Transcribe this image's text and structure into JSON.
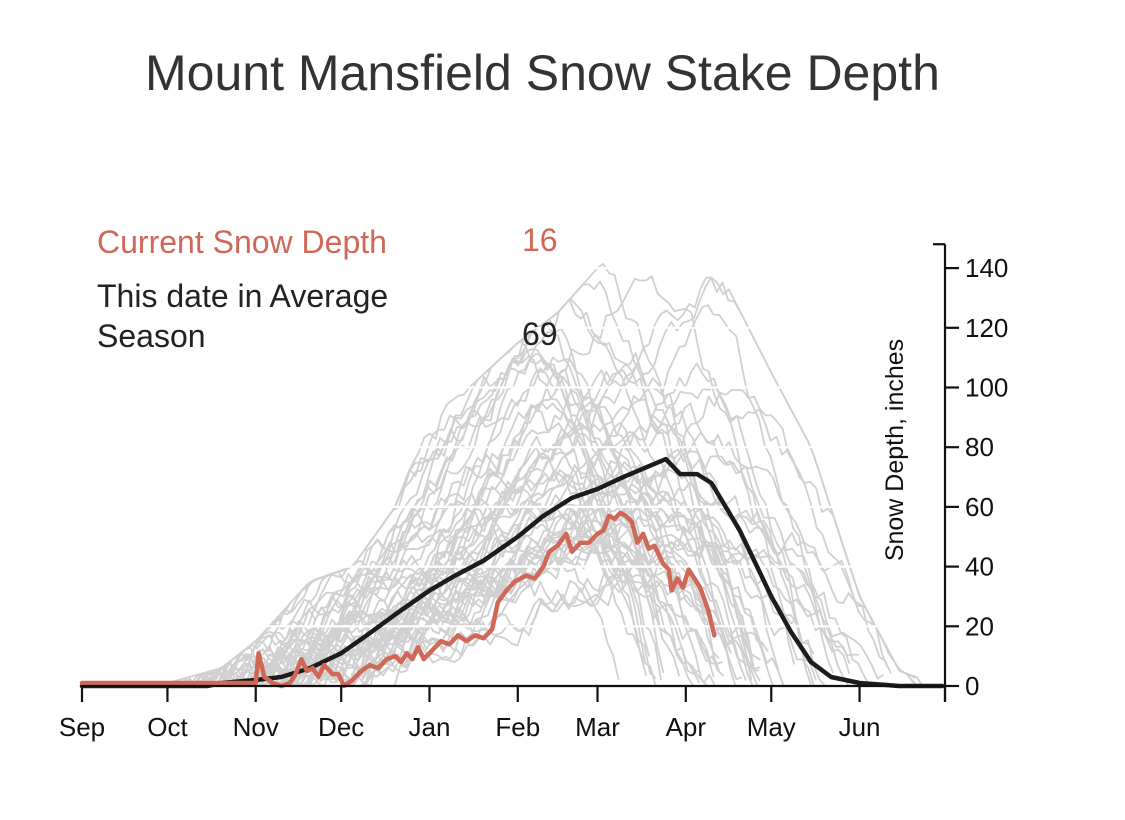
{
  "colors": {
    "current": "#d06858",
    "average": "#1c1c1c",
    "history": "#d0d0d0",
    "grid": "#ffffff",
    "axis": "#111111",
    "title": "#333333"
  },
  "chart_data": {
    "type": "line",
    "title": "Mount Mansfield Snow Stake Depth",
    "xlabel": "",
    "ylabel": "Snow Depth, inches",
    "x_axis": "day of season starting Sep 1",
    "x_ticks": [
      "Sep",
      "Oct",
      "Nov",
      "Dec",
      "Jan",
      "Feb",
      "Mar",
      "Apr",
      "May",
      "Jun"
    ],
    "y_ticks": [
      0,
      20,
      40,
      60,
      80,
      100,
      120,
      140
    ],
    "ylim": [
      0,
      148
    ],
    "y_axis_side": "right",
    "grid": "horizontal white gridlines",
    "legend": {
      "current_label": "Current Snow Depth",
      "current_value": "16",
      "average_label": "This date in Average Season",
      "average_value": "69"
    },
    "series": [
      {
        "name": "Current Snow Depth",
        "color": "#d06858",
        "points": [
          [
            "Sep 1",
            1
          ],
          [
            "Sep 15",
            1
          ],
          [
            "Oct 1",
            1
          ],
          [
            "Oct 15",
            1
          ],
          [
            "Oct 28",
            1
          ],
          [
            "Nov 1",
            1
          ],
          [
            "Nov 2",
            11
          ],
          [
            "Nov 4",
            3
          ],
          [
            "Nov 7",
            1
          ],
          [
            "Nov 10",
            0
          ],
          [
            "Nov 13",
            1
          ],
          [
            "Nov 15",
            4
          ],
          [
            "Nov 17",
            9
          ],
          [
            "Nov 19",
            5
          ],
          [
            "Nov 21",
            6
          ],
          [
            "Nov 23",
            3
          ],
          [
            "Nov 25",
            7
          ],
          [
            "Nov 28",
            4
          ],
          [
            "Nov 30",
            4
          ],
          [
            "Dec 2",
            0
          ],
          [
            "Dec 5",
            2
          ],
          [
            "Dec 8",
            5
          ],
          [
            "Dec 11",
            7
          ],
          [
            "Dec 14",
            6
          ],
          [
            "Dec 17",
            9
          ],
          [
            "Dec 20",
            10
          ],
          [
            "Dec 22",
            8
          ],
          [
            "Dec 24",
            11
          ],
          [
            "Dec 26",
            9
          ],
          [
            "Dec 28",
            13
          ],
          [
            "Dec 30",
            9
          ],
          [
            "Jan 2",
            12
          ],
          [
            "Jan 5",
            15
          ],
          [
            "Jan 8",
            14
          ],
          [
            "Jan 11",
            17
          ],
          [
            "Jan 14",
            15
          ],
          [
            "Jan 17",
            17
          ],
          [
            "Jan 20",
            16
          ],
          [
            "Jan 23",
            19
          ],
          [
            "Jan 25",
            28
          ],
          [
            "Jan 28",
            32
          ],
          [
            "Jan 31",
            35
          ],
          [
            "Feb 2",
            36
          ],
          [
            "Feb 4",
            37
          ],
          [
            "Feb 7",
            36
          ],
          [
            "Feb 10",
            40
          ],
          [
            "Feb 12",
            45
          ],
          [
            "Feb 15",
            47
          ],
          [
            "Feb 18",
            51
          ],
          [
            "Feb 20",
            45
          ],
          [
            "Feb 23",
            48
          ],
          [
            "Feb 26",
            48
          ],
          [
            "Mar 1",
            51
          ],
          [
            "Mar 3",
            52
          ],
          [
            "Mar 5",
            57
          ],
          [
            "Mar 7",
            56
          ],
          [
            "Mar 9",
            58
          ],
          [
            "Mar 11",
            57
          ],
          [
            "Mar 13",
            55
          ],
          [
            "Mar 15",
            48
          ],
          [
            "Mar 17",
            51
          ],
          [
            "Mar 19",
            46
          ],
          [
            "Mar 21",
            47
          ],
          [
            "Mar 24",
            41
          ],
          [
            "Mar 26",
            39
          ],
          [
            "Mar 27",
            32
          ],
          [
            "Mar 29",
            36
          ],
          [
            "Mar 31",
            33
          ],
          [
            "Apr 2",
            39
          ],
          [
            "Apr 4",
            36
          ],
          [
            "Apr 6",
            33
          ],
          [
            "Apr 9",
            25
          ],
          [
            "Apr 11",
            17
          ]
        ]
      },
      {
        "name": "This date in Average Season",
        "color": "#1c1c1c",
        "points": [
          [
            "Sep 1",
            0
          ],
          [
            "Sep 15",
            0
          ],
          [
            "Oct 1",
            0
          ],
          [
            "Oct 15",
            0
          ],
          [
            "Oct 20",
            1
          ],
          [
            "Nov 1",
            2
          ],
          [
            "Nov 10",
            3
          ],
          [
            "Nov 20",
            6
          ],
          [
            "Dec 1",
            11
          ],
          [
            "Dec 10",
            17
          ],
          [
            "Dec 20",
            24
          ],
          [
            "Jan 1",
            32
          ],
          [
            "Jan 10",
            37
          ],
          [
            "Jan 20",
            42
          ],
          [
            "Feb 1",
            50
          ],
          [
            "Feb 10",
            57
          ],
          [
            "Feb 20",
            63
          ],
          [
            "Mar 1",
            66
          ],
          [
            "Mar 10",
            70
          ],
          [
            "Mar 20",
            74
          ],
          [
            "Mar 25",
            76
          ],
          [
            "Mar 30",
            71
          ],
          [
            "Apr 5",
            71
          ],
          [
            "Apr 10",
            68
          ],
          [
            "Apr 15",
            60
          ],
          [
            "Apr 20",
            52
          ],
          [
            "Apr 25",
            42
          ],
          [
            "May 1",
            30
          ],
          [
            "May 8",
            18
          ],
          [
            "May 15",
            8
          ],
          [
            "May 22",
            3
          ],
          [
            "Jun 1",
            1
          ],
          [
            "Jun 15",
            0
          ],
          [
            "Jun 30",
            0
          ]
        ]
      }
    ],
    "historical_seasons": {
      "name": "Past seasons",
      "color": "#d0d0d0",
      "envelope_max": [
        [
          "Oct 1",
          1
        ],
        [
          "Oct 20",
          6
        ],
        [
          "Nov 1",
          15
        ],
        [
          "Nov 20",
          35
        ],
        [
          "Dec 5",
          40
        ],
        [
          "Dec 20",
          60
        ],
        [
          "Jan 1",
          90
        ],
        [
          "Jan 15",
          100
        ],
        [
          "Feb 1",
          115
        ],
        [
          "Feb 15",
          125
        ],
        [
          "Mar 1",
          140
        ],
        [
          "Mar 15",
          150
        ],
        [
          "Apr 1",
          140
        ],
        [
          "Apr 15",
          135
        ],
        [
          "May 1",
          105
        ],
        [
          "May 15",
          80
        ],
        [
          "Jun 1",
          30
        ],
        [
          "Jun 15",
          5
        ],
        [
          "Jun 30",
          0
        ]
      ]
    }
  }
}
